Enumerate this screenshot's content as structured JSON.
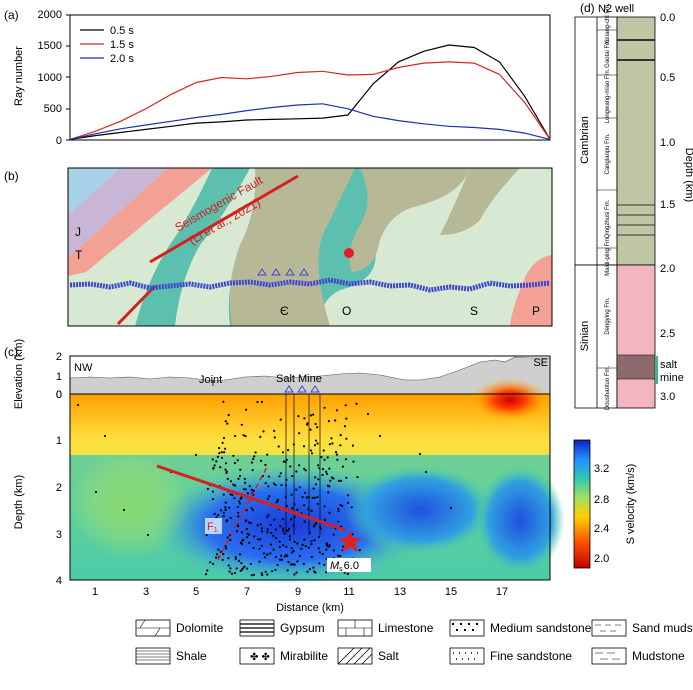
{
  "panel_a": {
    "label": "(a)",
    "ylabel": "Ray number",
    "yticks": [
      "0",
      "500",
      "1000",
      "1500",
      "2000"
    ],
    "legend": [
      {
        "name": "0.5 s",
        "color": "#000000"
      },
      {
        "name": "1.5 s",
        "color": "#d62728"
      },
      {
        "name": "2.0 s",
        "color": "#1f2fb0"
      }
    ]
  },
  "panel_b": {
    "label": "(b)",
    "fault_label_1": "Seismogenic Fault",
    "fault_label_2": "(Li et al., 2021)",
    "units": [
      "J",
      "T",
      "Є",
      "O",
      "S",
      "P"
    ]
  },
  "panel_c": {
    "label": "(c)",
    "elev_label": "Elevation (km)",
    "elev_ticks": [
      "2",
      "1",
      "0"
    ],
    "nw": "NW",
    "se": "SE",
    "joint": "Joint",
    "salt_mine": "Salt Mine",
    "depth_label": "Depth (km)",
    "depth_ticks": [
      "0",
      "1",
      "2",
      "3",
      "4"
    ],
    "xticks": [
      "1",
      "3",
      "5",
      "7",
      "9",
      "11",
      "13",
      "15",
      "17"
    ],
    "xlabel": "Distance (km)",
    "fault_label": "F",
    "fault_sub": "1",
    "mag_label": "M",
    "mag_sub": "s",
    "mag_value": "6.0",
    "colorbar_label": "S velocity (km/s)",
    "colorbar_ticks": [
      "3.2",
      "2.8",
      "2.4",
      "2.0"
    ]
  },
  "panel_d": {
    "label": "(d)",
    "title": "N2 well",
    "depth_label": "Depth (km)",
    "depth_ticks": [
      "0.0",
      "0.5",
      "1.0",
      "1.5",
      "2.0",
      "2.5",
      "3.0"
    ],
    "system_1": "Cambrian",
    "system_2": "Sinian",
    "formations": [
      "Xixiang-chi Fm.",
      "Gaotai Fm.",
      "Longwang-miao Fm.",
      "Canglanpu Fm.",
      "Qingzhusi Fm.",
      "Maidi-ping Fm.",
      "Dengying Fm.",
      "Doushantuo Fm."
    ],
    "salt_mine_1": "salt",
    "salt_mine_2": "mine"
  },
  "legend": {
    "items": [
      "Dolomite",
      "Gypsum",
      "Limestone",
      "Medium sandstone",
      "Sand mudstone",
      "Shale",
      "Mirabilite",
      "Salt",
      "Fine sandstone",
      "Mudstone"
    ]
  },
  "chart_data": [
    {
      "type": "line",
      "title": "",
      "xlabel": "",
      "ylabel": "Ray number",
      "xlim": [
        0,
        19
      ],
      "ylim": [
        0,
        2000
      ],
      "series": [
        {
          "name": "0.5 s",
          "x": [
            0,
            1,
            2,
            3,
            4,
            5,
            6,
            7,
            8,
            9,
            10,
            11,
            12,
            13,
            14,
            15,
            16,
            17,
            18,
            19
          ],
          "values": [
            10,
            70,
            120,
            170,
            220,
            270,
            290,
            320,
            330,
            340,
            350,
            400,
            900,
            1250,
            1420,
            1520,
            1480,
            1250,
            700,
            10
          ]
        },
        {
          "name": "1.5 s",
          "x": [
            0,
            1,
            2,
            3,
            4,
            5,
            6,
            7,
            8,
            9,
            10,
            11,
            12,
            13,
            14,
            15,
            16,
            17,
            18,
            19
          ],
          "values": [
            10,
            140,
            300,
            500,
            730,
            920,
            1000,
            980,
            1020,
            1080,
            1100,
            1040,
            1050,
            1160,
            1230,
            1250,
            1230,
            1050,
            600,
            10
          ]
        },
        {
          "name": "2.0 s",
          "x": [
            0,
            1,
            2,
            3,
            4,
            5,
            6,
            7,
            8,
            9,
            10,
            11,
            12,
            13,
            14,
            15,
            16,
            17,
            18,
            19
          ],
          "values": [
            10,
            100,
            180,
            240,
            300,
            360,
            410,
            470,
            520,
            560,
            580,
            500,
            380,
            310,
            260,
            220,
            200,
            170,
            110,
            10
          ]
        }
      ]
    }
  ]
}
